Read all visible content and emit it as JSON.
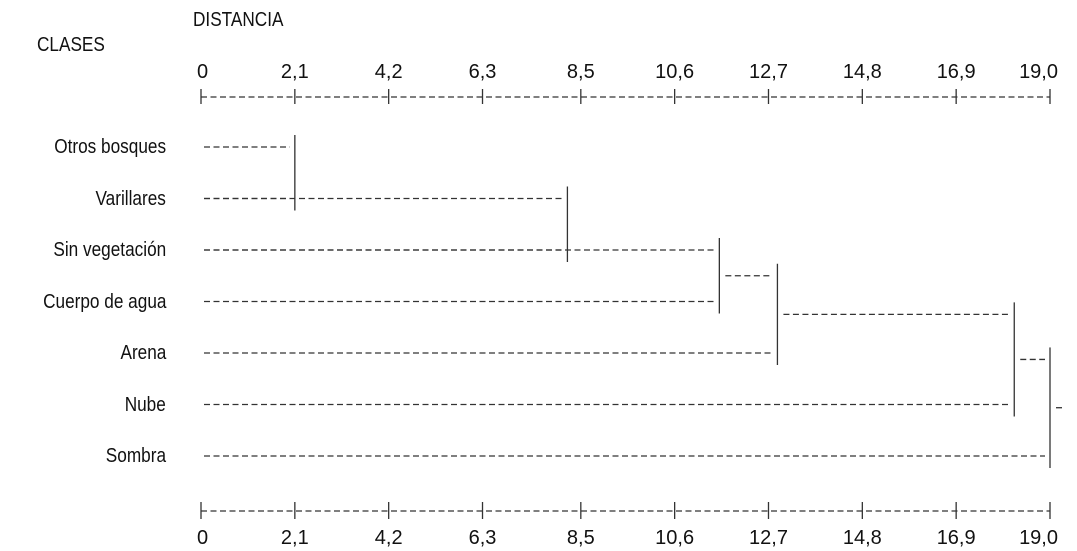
{
  "header": {
    "classes_label": "CLASES",
    "distance_label": "DISTANCIA"
  },
  "axis": {
    "min": 0,
    "max": 19.0,
    "ticks": [
      {
        "value": 0,
        "label": "0"
      },
      {
        "value": 2.1,
        "label": "2,1"
      },
      {
        "value": 4.2,
        "label": "4,2"
      },
      {
        "value": 6.3,
        "label": "6,3"
      },
      {
        "value": 8.5,
        "label": "8,5"
      },
      {
        "value": 10.6,
        "label": "10,6"
      },
      {
        "value": 12.7,
        "label": "12,7"
      },
      {
        "value": 14.8,
        "label": "14,8"
      },
      {
        "value": 16.9,
        "label": "16,9"
      },
      {
        "value": 19.0,
        "label": "19,0"
      }
    ]
  },
  "classes": [
    "Otros bosques",
    "Varillares",
    "Sin vegetación",
    "Cuerpo de agua",
    "Arena",
    "Nube",
    "Sombra"
  ],
  "merges": [
    {
      "rows": [
        0,
        1
      ],
      "distance": 2.1
    },
    {
      "rows": [
        1,
        2
      ],
      "distance": 8.2
    },
    {
      "rows": [
        2,
        3
      ],
      "distance": 11.6
    },
    {
      "rows": [
        2.5,
        4
      ],
      "distance": 12.9
    },
    {
      "rows": [
        3.25,
        5
      ],
      "distance": 18.2
    },
    {
      "rows": [
        4.125,
        6
      ],
      "distance": 19.0
    }
  ],
  "colors": {
    "line": "#333333",
    "text": "#111111"
  }
}
